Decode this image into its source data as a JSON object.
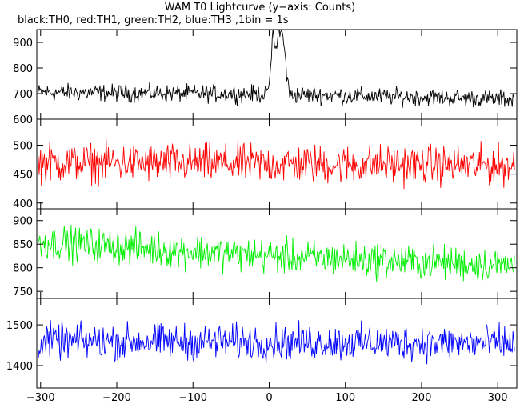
{
  "title": "WAM T0 Lightcurve (y−axis: Counts)",
  "subtitle": "black:TH0, red:TH1, green:TH2, blue:TH3 ,1bin = 1s",
  "chart_data": {
    "type": "line",
    "bin_seconds": 1,
    "x_range": [
      -305,
      325
    ],
    "x_ticks": [
      -300,
      -200,
      -100,
      0,
      100,
      200,
      300
    ],
    "x_tick_labels": [
      "−300",
      "−200",
      "−100",
      "0",
      "100",
      "200",
      "300"
    ],
    "series": [
      {
        "name": "TH0",
        "color": "#000000",
        "y_range": [
          600,
          950
        ],
        "y_ticks": [
          600,
          700,
          800,
          900
        ],
        "y_tick_labels": [
          "600",
          "700",
          "800",
          "900"
        ],
        "baseline": [
          [
            -305,
            705
          ],
          [
            -100,
            700
          ],
          [
            0,
            698
          ],
          [
            100,
            692
          ],
          [
            325,
            678
          ]
        ],
        "noise": 35,
        "burst": [
          [
            -8,
            700
          ],
          [
            0,
            720
          ],
          [
            3,
            860
          ],
          [
            5,
            930
          ],
          [
            9,
            880
          ],
          [
            13,
            950
          ],
          [
            18,
            930
          ],
          [
            21,
            860
          ],
          [
            23,
            760
          ],
          [
            27,
            700
          ]
        ]
      },
      {
        "name": "TH1",
        "color": "#ff0000",
        "y_range": [
          390,
          545
        ],
        "y_ticks": [
          400,
          450,
          500
        ],
        "y_tick_labels": [
          "400",
          "450",
          "500"
        ],
        "baseline": [
          [
            -305,
            470
          ],
          [
            325,
            465
          ]
        ],
        "noise": 35
      },
      {
        "name": "TH2",
        "color": "#00ee00",
        "y_range": [
          735,
          925
        ],
        "y_ticks": [
          750,
          800,
          850,
          900
        ],
        "y_tick_labels": [
          "750",
          "800",
          "850",
          "900"
        ],
        "baseline": [
          [
            -305,
            855
          ],
          [
            -150,
            840
          ],
          [
            0,
            825
          ],
          [
            150,
            815
          ],
          [
            325,
            805
          ]
        ],
        "noise": 38
      },
      {
        "name": "TH3",
        "color": "#0000ff",
        "y_range": [
          1345,
          1565
        ],
        "y_ticks": [
          1400,
          1500
        ],
        "y_tick_labels": [
          "1400",
          "1500"
        ],
        "baseline": [
          [
            -305,
            1460
          ],
          [
            325,
            1455
          ]
        ],
        "noise": 45
      }
    ]
  }
}
